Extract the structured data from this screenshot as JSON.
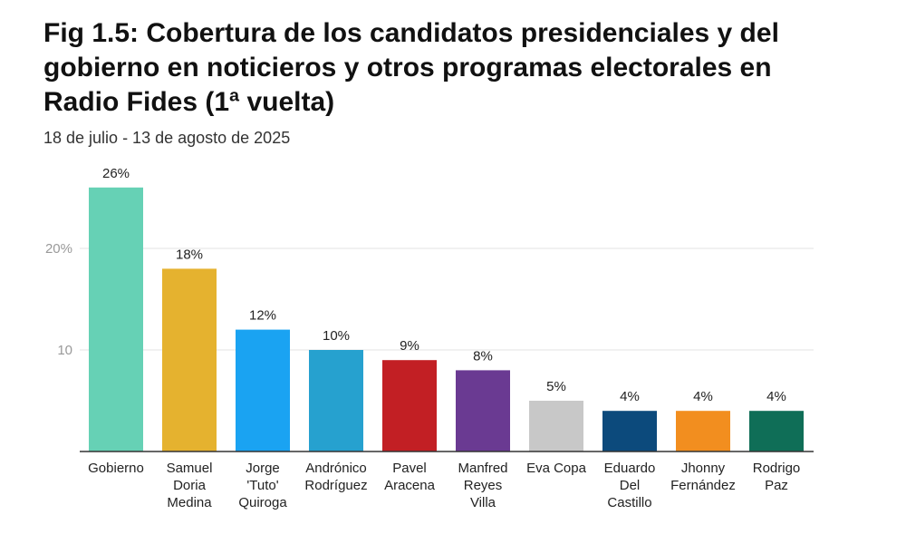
{
  "chart_data": {
    "type": "bar",
    "title": "Fig 1.5: Cobertura de los candidatos presidenciales y del gobierno en noticieros y otros programas electorales en Radio Fides (1ª vuelta)",
    "subtitle": "18 de julio - 13 de agosto de 2025",
    "xlabel": "",
    "ylabel": "",
    "ylim": [
      0,
      26
    ],
    "yticks": [
      {
        "value": 10,
        "label": "10"
      },
      {
        "value": 20,
        "label": "20%"
      }
    ],
    "grid": true,
    "categories": [
      [
        "Gobierno"
      ],
      [
        "Samuel",
        "Doria",
        "Medina"
      ],
      [
        "Jorge",
        "'Tuto'",
        "Quiroga"
      ],
      [
        "Andrónico",
        "Rodríguez"
      ],
      [
        "Pavel",
        "Aracena"
      ],
      [
        "Manfred",
        "Reyes",
        "Villa"
      ],
      [
        "Eva Copa"
      ],
      [
        "Eduardo",
        "Del",
        "Castillo"
      ],
      [
        "Jhonny",
        "Fernández"
      ],
      [
        "Rodrigo",
        "Paz"
      ]
    ],
    "values": [
      26,
      18,
      12,
      10,
      9,
      8,
      5,
      4,
      4,
      4
    ],
    "data_labels": [
      "26%",
      "18%",
      "12%",
      "10%",
      "9%",
      "8%",
      "5%",
      "4%",
      "4%",
      "4%"
    ],
    "colors": [
      "#66d1b5",
      "#e5b22f",
      "#1aa3f2",
      "#26a1cf",
      "#c21f24",
      "#6a3a92",
      "#c8c8c8",
      "#0c4a7c",
      "#f28e1f",
      "#0f6e57"
    ]
  }
}
